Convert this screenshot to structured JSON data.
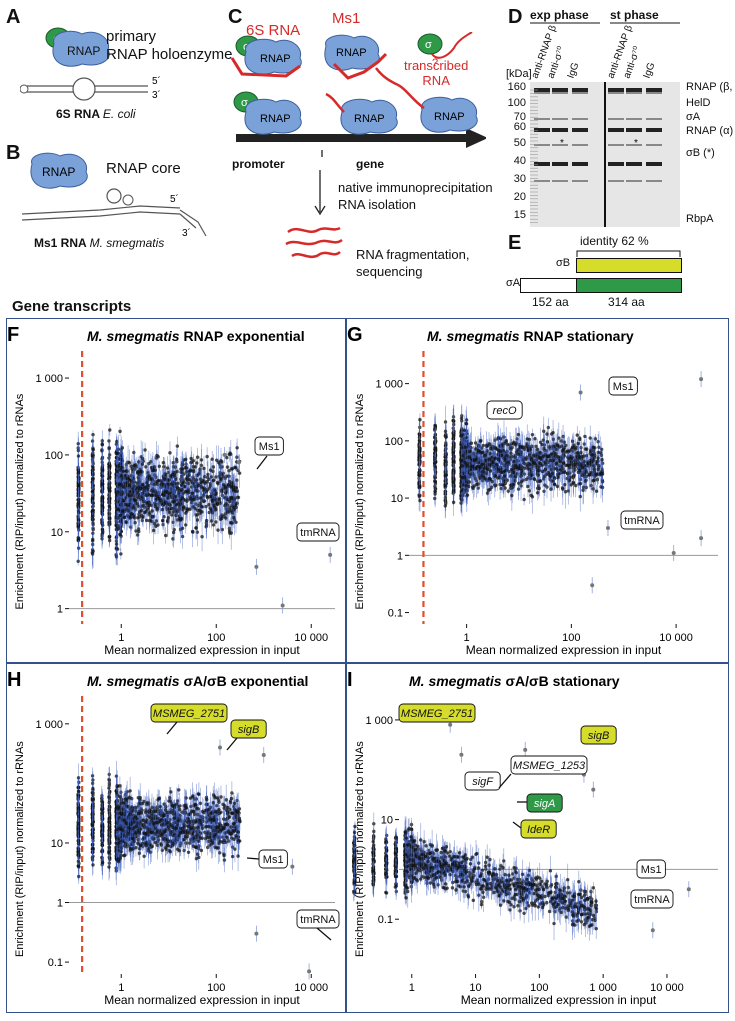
{
  "panelA": {
    "letter": "A",
    "sigma": "σ",
    "rnap": "RNAP",
    "title_line1": "primary",
    "title_line2": "RNAP holoenzyme",
    "end5": "5´",
    "end3": "3´",
    "caption_bold": "6S RNA ",
    "caption_italic": "E. coli"
  },
  "panelB": {
    "letter": "B",
    "rnap": "RNAP",
    "title": "RNAP core",
    "end5": "5´",
    "end3": "3´",
    "caption_bold": "Ms1 RNA ",
    "caption_italic": "M. smegmatis"
  },
  "panelC": {
    "letter": "C",
    "label_6s": "6S RNA",
    "label_ms1": "Ms1",
    "sigma": "σ",
    "rnap": "RNAP",
    "question": "?",
    "transcribed_line1": "transcribed",
    "transcribed_line2": "RNA",
    "promoter": "promoter",
    "gene": "gene",
    "step1_line1": "native immunoprecipitation",
    "step1_line2": "RNA isolation",
    "step2_line1": "RNA fragmentation,",
    "step2_line2": "sequencing"
  },
  "panelD": {
    "letter": "D",
    "header_exp": "exp phase",
    "header_st": "st phase",
    "kda": "[kDa]",
    "lane_labels": [
      "anti-RNAP β",
      "anti-σ⁷⁰",
      "IgG",
      "anti-RNAP β",
      "anti-σ⁷⁰",
      "IgG"
    ],
    "markers": [
      "160",
      "100",
      "70",
      "60",
      "50",
      "40",
      "30",
      "20",
      "15"
    ],
    "bands": [
      "RNAP (β, β´)",
      "HelD",
      "σA",
      "RNAP (α)",
      "σB (*)",
      "RbpA"
    ],
    "star": "*"
  },
  "panelE": {
    "letter": "E",
    "identity": "identity 62 %",
    "sigmaB": "σB",
    "sigmaA": "σA",
    "len_white": "152 aa",
    "len_green": "314 aa",
    "color_yellow": "#d6dc2a",
    "color_green": "#2e9a47"
  },
  "section_title": "Gene transcripts",
  "plots": [
    {
      "letter": "F",
      "title_prefix": "M. smegmatis",
      "title_suffix": " RNAP exponential",
      "ylabel": "Enrichment (RIP/input) normalized to rRNAs",
      "xlabel": "Mean normalized expression in input",
      "xticks": [
        "1",
        "100",
        "10 000"
      ],
      "yticks": [
        "1",
        "10",
        "100",
        "1 000"
      ],
      "callouts": [
        "Ms1",
        "tmRNA"
      ]
    },
    {
      "letter": "G",
      "title_prefix": "M. smegmatis",
      "title_suffix": " RNAP stationary",
      "ylabel": "Enrichment (RIP/input) normalized to rRNAs",
      "xlabel": "Mean normalized expression in input",
      "xticks": [
        "1",
        "100",
        "10 000"
      ],
      "yticks": [
        "0.1",
        "1",
        "10",
        "100",
        "1 000"
      ],
      "callouts": [
        "recO",
        "Ms1",
        "tmRNA"
      ]
    },
    {
      "letter": "H",
      "title_prefix": "M. smegmatis",
      "title_suffix": " σA/σB exponential",
      "ylabel": "Enrichment (RIP/input) normalized to rRNAs",
      "xlabel": "Mean normalized expression in input",
      "xticks": [
        "1",
        "100",
        "10 000"
      ],
      "yticks": [
        "0.1",
        "1",
        "10",
        "1 000"
      ],
      "callouts": [
        "MSMEG_2751",
        "sigB",
        "Ms1",
        "tmRNA"
      ]
    },
    {
      "letter": "I",
      "title_prefix": "M. smegmatis",
      "title_suffix": " σA/σB stationary",
      "ylabel": "Enrichment (RIP/input) normalized to rRNAs",
      "xlabel": "Mean normalized expression in input",
      "xticks": [
        "1",
        "10",
        "100",
        "1 000",
        "10 000"
      ],
      "yticks": [
        "0.1",
        "10",
        "1 000"
      ],
      "callouts": [
        "MSMEG_2751",
        "sigB",
        "sigF",
        "MSMEG_1253",
        "sigA",
        "IdeR",
        "Ms1",
        "tmRNA"
      ]
    }
  ]
}
